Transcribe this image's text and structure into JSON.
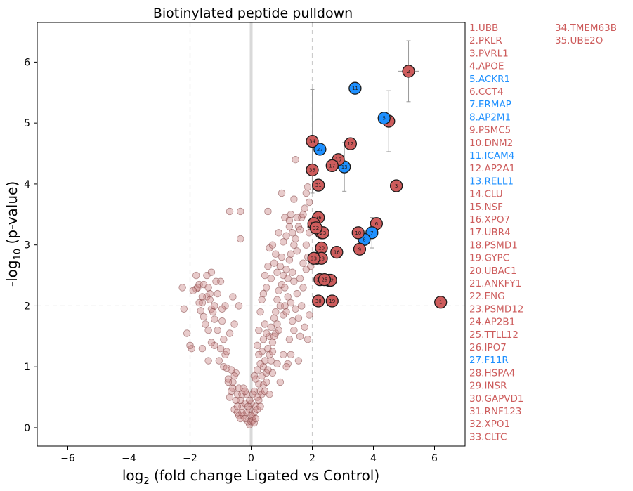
{
  "chart_data": {
    "type": "scatter",
    "title": "Biotinylated peptide pulldown",
    "xlabel_prefix": "log",
    "xlabel_sub": "2",
    "xlabel_rest": " (fold change Ligated vs Control)",
    "ylabel_prefix": "-log",
    "ylabel_sub": "10",
    "ylabel_rest": " (p-value)",
    "xlim": [
      -7,
      7
    ],
    "ylim": [
      -0.3,
      6.65
    ],
    "xticks": [
      -6,
      -4,
      -2,
      0,
      2,
      4,
      6
    ],
    "xtick_labels": [
      "−6",
      "−4",
      "−2",
      "0",
      "2",
      "4",
      "6"
    ],
    "yticks": [
      0,
      1,
      2,
      3,
      4,
      5,
      6
    ],
    "ytick_labels": [
      "0",
      "1",
      "2",
      "3",
      "4",
      "5",
      "6"
    ],
    "threshold_x": [
      -2,
      2
    ],
    "threshold_y": 2,
    "colors": {
      "red": "#cd5c5c",
      "blue": "#1e90ff",
      "bg_point": "#cd8c8c",
      "guide": "#cccccc",
      "zero": "#d9d9d9"
    },
    "labeled_points": [
      {
        "id": 1,
        "name": "UBB",
        "color": "red",
        "x": 6.2,
        "y": 2.06
      },
      {
        "id": 2,
        "name": "PKLR",
        "color": "red",
        "x": 5.15,
        "y": 5.85,
        "xerr": 0.35,
        "yerr": 0.5
      },
      {
        "id": 3,
        "name": "PVRL1",
        "color": "red",
        "x": 4.75,
        "y": 3.97
      },
      {
        "id": 4,
        "name": "APOE",
        "color": "red",
        "x": 4.5,
        "y": 5.03,
        "xerr": 0.2,
        "yerr": 0.5
      },
      {
        "id": 5,
        "name": "ACKR1",
        "color": "blue",
        "x": 4.35,
        "y": 5.08
      },
      {
        "id": 6,
        "name": "CCT4",
        "color": "red",
        "x": 4.1,
        "y": 3.35
      },
      {
        "id": 7,
        "name": "ERMAP",
        "color": "blue",
        "x": 3.95,
        "y": 3.2,
        "xerr": 0.2,
        "yerr": 0.25
      },
      {
        "id": 8,
        "name": "AP2M1",
        "color": "blue",
        "x": 3.7,
        "y": 3.09
      },
      {
        "id": 9,
        "name": "PSMC5",
        "color": "red",
        "x": 3.55,
        "y": 2.93
      },
      {
        "id": 10,
        "name": "DNM2",
        "color": "red",
        "x": 3.5,
        "y": 3.2
      },
      {
        "id": 11,
        "name": "ICAM4",
        "color": "blue",
        "x": 3.4,
        "y": 5.57
      },
      {
        "id": 12,
        "name": "AP2A1",
        "color": "red",
        "x": 3.25,
        "y": 4.66
      },
      {
        "id": 13,
        "name": "RELL1",
        "color": "blue",
        "x": 3.05,
        "y": 4.28,
        "yerr": 0.4
      },
      {
        "id": 14,
        "name": "CLU",
        "color": "red",
        "x": 2.3,
        "y": 3.2
      },
      {
        "id": 15,
        "name": "NSF",
        "color": "red",
        "x": 2.85,
        "y": 4.4
      },
      {
        "id": 16,
        "name": "XPO7",
        "color": "red",
        "x": 2.8,
        "y": 2.88
      },
      {
        "id": 17,
        "name": "UBR4",
        "color": "red",
        "x": 2.65,
        "y": 4.3
      },
      {
        "id": 18,
        "name": "PSMD1",
        "color": "red",
        "x": 2.15,
        "y": 2.78
      },
      {
        "id": 19,
        "name": "GYPC",
        "color": "red",
        "x": 2.65,
        "y": 2.08
      },
      {
        "id": 20,
        "name": "UBAC1",
        "color": "red",
        "x": 2.3,
        "y": 2.95
      },
      {
        "id": 21,
        "name": "ANKFY1",
        "color": "red",
        "x": 2.55,
        "y": 2.42
      },
      {
        "id": 22,
        "name": "ENG",
        "color": "red",
        "x": 2.6,
        "y": 2.42
      },
      {
        "id": 23,
        "name": "PSMD12",
        "color": "red",
        "x": 2.35,
        "y": 3.2
      },
      {
        "id": 24,
        "name": "AP2B1",
        "color": "red",
        "x": 2.25,
        "y": 2.43
      },
      {
        "id": 25,
        "name": "TTLL12",
        "color": "red",
        "x": 2.4,
        "y": 2.43
      },
      {
        "id": 26,
        "name": "IPO7",
        "color": "red",
        "x": 2.2,
        "y": 3.45
      },
      {
        "id": 27,
        "name": "F11R",
        "color": "blue",
        "x": 2.25,
        "y": 4.57
      },
      {
        "id": 28,
        "name": "HSPA4",
        "color": "red",
        "x": 2.3,
        "y": 2.78
      },
      {
        "id": 29,
        "name": "INSR",
        "color": "red",
        "x": 2.05,
        "y": 3.35
      },
      {
        "id": 30,
        "name": "GAPVD1",
        "color": "red",
        "x": 2.2,
        "y": 2.08
      },
      {
        "id": 31,
        "name": "RNF123",
        "color": "red",
        "x": 2.2,
        "y": 3.98
      },
      {
        "id": 32,
        "name": "XPO1",
        "color": "red",
        "x": 2.12,
        "y": 3.28
      },
      {
        "id": 33,
        "name": "CLTC",
        "color": "red",
        "x": 2.05,
        "y": 2.78
      },
      {
        "id": 34,
        "name": "TMEM63B",
        "color": "red",
        "x": 2.0,
        "y": 4.7,
        "yerr": 0.85
      },
      {
        "id": 35,
        "name": "UBE2O",
        "color": "red",
        "x": 2.0,
        "y": 4.23
      }
    ],
    "background_points": [
      [
        -1.95,
        1.3
      ],
      [
        -2.0,
        1.35
      ],
      [
        -2.25,
        2.3
      ],
      [
        -1.8,
        2.28
      ],
      [
        -1.6,
        2.05
      ],
      [
        -1.55,
        1.82
      ],
      [
        -1.45,
        2.15
      ],
      [
        -1.35,
        2.2
      ],
      [
        -1.3,
        1.95
      ],
      [
        -1.2,
        1.78
      ],
      [
        -1.0,
        1.3
      ],
      [
        -1.05,
        1.1
      ],
      [
        -1.2,
        1.35
      ],
      [
        -1.3,
        1.4
      ],
      [
        -1.4,
        1.6
      ],
      [
        -1.5,
        1.7
      ],
      [
        -1.65,
        1.92
      ],
      [
        -1.7,
        2.35
      ],
      [
        -1.8,
        2.5
      ],
      [
        -1.75,
        2.3
      ],
      [
        -0.9,
        1.0
      ],
      [
        -0.85,
        1.2
      ],
      [
        -0.8,
        0.98
      ],
      [
        -0.75,
        0.8
      ],
      [
        -0.7,
        0.5
      ],
      [
        -0.65,
        0.6
      ],
      [
        -0.6,
        0.75
      ],
      [
        -0.55,
        0.3
      ],
      [
        -0.5,
        0.45
      ],
      [
        -0.45,
        0.25
      ],
      [
        -0.4,
        0.2
      ],
      [
        -0.35,
        0.15
      ],
      [
        -0.3,
        0.35
      ],
      [
        -0.25,
        0.65
      ],
      [
        -0.2,
        0.4
      ],
      [
        -0.15,
        0.55
      ],
      [
        -0.1,
        0.1
      ],
      [
        -0.05,
        0.05
      ],
      [
        0.0,
        0.1
      ],
      [
        0.05,
        0.18
      ],
      [
        0.1,
        0.25
      ],
      [
        0.15,
        0.35
      ],
      [
        0.2,
        0.5
      ],
      [
        0.25,
        0.72
      ],
      [
        0.3,
        0.6
      ],
      [
        0.35,
        0.85
      ],
      [
        0.4,
        1.0
      ],
      [
        0.45,
        1.1
      ],
      [
        0.5,
        0.9
      ],
      [
        0.55,
        1.3
      ],
      [
        0.6,
        1.5
      ],
      [
        0.65,
        1.65
      ],
      [
        0.7,
        1.4
      ],
      [
        0.75,
        1.8
      ],
      [
        0.8,
        1.9
      ],
      [
        0.85,
        2.1
      ],
      [
        0.9,
        2.25
      ],
      [
        0.95,
        2.0
      ],
      [
        1.0,
        2.35
      ],
      [
        1.05,
        2.5
      ],
      [
        1.1,
        2.3
      ],
      [
        1.15,
        2.6
      ],
      [
        1.2,
        2.45
      ],
      [
        1.25,
        2.75
      ],
      [
        1.3,
        2.85
      ],
      [
        1.35,
        2.55
      ],
      [
        1.4,
        3.0
      ],
      [
        1.45,
        3.1
      ],
      [
        1.5,
        2.9
      ],
      [
        1.55,
        3.3
      ],
      [
        1.6,
        3.25
      ],
      [
        1.65,
        3.45
      ],
      [
        1.7,
        3.5
      ],
      [
        1.75,
        3.6
      ],
      [
        1.8,
        3.85
      ],
      [
        1.85,
        3.95
      ],
      [
        1.9,
        3.7
      ],
      [
        1.95,
        3.3
      ],
      [
        1.3,
        3.5
      ],
      [
        1.1,
        3.45
      ],
      [
        0.55,
        3.55
      ],
      [
        1.0,
        3.85
      ],
      [
        1.25,
        3.4
      ],
      [
        0.9,
        3.2
      ],
      [
        1.45,
        4.4
      ],
      [
        1.4,
        3.75
      ],
      [
        1.5,
        3.45
      ],
      [
        1.7,
        2.3
      ],
      [
        1.8,
        2.6
      ],
      [
        1.6,
        1.5
      ],
      [
        1.3,
        1.2
      ],
      [
        1.55,
        1.1
      ],
      [
        1.2,
        1.05
      ],
      [
        0.95,
        0.75
      ],
      [
        0.85,
        1.05
      ],
      [
        0.7,
        0.9
      ],
      [
        0.6,
        1.2
      ],
      [
        0.5,
        1.55
      ],
      [
        0.45,
        1.7
      ],
      [
        0.4,
        1.45
      ],
      [
        0.35,
        1.25
      ],
      [
        0.3,
        1.05
      ],
      [
        0.25,
        1.2
      ],
      [
        0.2,
        0.95
      ],
      [
        0.15,
        0.8
      ],
      [
        0.1,
        0.6
      ],
      [
        0.0,
        0.4
      ],
      [
        -0.05,
        0.3
      ],
      [
        0.05,
        0.55
      ],
      [
        0.1,
        0.85
      ],
      [
        -0.7,
        3.55
      ],
      [
        -0.35,
        3.55
      ],
      [
        -0.35,
        3.1
      ],
      [
        -0.6,
        2.15
      ],
      [
        -0.4,
        2.0
      ],
      [
        -0.55,
        1.7
      ],
      [
        -0.7,
        1.55
      ],
      [
        -0.9,
        1.45
      ],
      [
        -1.1,
        1.6
      ],
      [
        -1.25,
        1.9
      ],
      [
        -0.95,
        1.75
      ],
      [
        -0.85,
        2.0
      ],
      [
        -1.45,
        2.5
      ],
      [
        -1.55,
        2.35
      ],
      [
        -1.4,
        2.3
      ],
      [
        -1.2,
        2.0
      ],
      [
        -1.1,
        2.2
      ],
      [
        -1.0,
        2.4
      ],
      [
        -0.95,
        1.95
      ],
      [
        -0.5,
        0.9
      ],
      [
        -0.45,
        0.55
      ],
      [
        -0.35,
        0.45
      ],
      [
        -0.25,
        0.2
      ],
      [
        -0.2,
        0.15
      ],
      [
        -0.15,
        0.25
      ],
      [
        -0.1,
        0.35
      ],
      [
        -0.05,
        0.45
      ],
      [
        0.0,
        0.2
      ],
      [
        0.05,
        0.12
      ],
      [
        0.1,
        0.08
      ],
      [
        0.15,
        0.15
      ],
      [
        0.2,
        0.3
      ],
      [
        0.25,
        0.45
      ],
      [
        0.3,
        0.35
      ],
      [
        0.35,
        0.55
      ],
      [
        0.4,
        0.7
      ],
      [
        0.45,
        0.6
      ],
      [
        0.5,
        0.75
      ],
      [
        0.55,
        0.95
      ],
      [
        0.6,
        0.55
      ],
      [
        0.65,
        1.1
      ],
      [
        0.7,
        1.25
      ],
      [
        0.75,
        1.5
      ],
      [
        0.8,
        1.55
      ],
      [
        0.85,
        1.7
      ],
      [
        0.9,
        1.6
      ],
      [
        1.05,
        1.85
      ],
      [
        1.1,
        2.0
      ],
      [
        1.15,
        1.9
      ],
      [
        1.2,
        2.15
      ],
      [
        1.3,
        2.05
      ],
      [
        1.35,
        1.75
      ],
      [
        1.4,
        2.4
      ],
      [
        1.5,
        2.2
      ],
      [
        1.6,
        2.45
      ],
      [
        1.7,
        2.7
      ],
      [
        1.8,
        3.0
      ],
      [
        1.9,
        3.2
      ],
      [
        1.85,
        2.8
      ],
      [
        1.95,
        2.65
      ],
      [
        0.5,
        2.3
      ],
      [
        0.45,
        2.5
      ],
      [
        0.55,
        2.65
      ],
      [
        0.65,
        2.45
      ],
      [
        0.75,
        2.7
      ],
      [
        0.85,
        2.55
      ],
      [
        0.6,
        2.95
      ],
      [
        0.7,
        3.0
      ],
      [
        0.8,
        2.85
      ],
      [
        0.95,
        2.65
      ],
      [
        1.0,
        2.8
      ],
      [
        1.05,
        3.05
      ],
      [
        1.15,
        3.15
      ],
      [
        1.25,
        3.3
      ],
      [
        1.35,
        3.2
      ],
      [
        0.4,
        2.2
      ],
      [
        0.3,
        1.9
      ],
      [
        0.35,
        2.1
      ],
      [
        0.25,
        1.6
      ],
      [
        0.2,
        1.35
      ],
      [
        -0.8,
        1.25
      ],
      [
        -0.75,
        0.75
      ],
      [
        -0.65,
        0.95
      ],
      [
        -0.6,
        0.65
      ],
      [
        -0.55,
        0.85
      ],
      [
        -0.45,
        0.35
      ],
      [
        -0.4,
        0.65
      ],
      [
        -0.3,
        0.55
      ],
      [
        -0.3,
        0.25
      ],
      [
        -0.2,
        0.6
      ],
      [
        -1.15,
        2.4
      ],
      [
        -1.3,
        2.55
      ],
      [
        -1.35,
        2.1
      ],
      [
        -1.6,
        2.15
      ],
      [
        -1.7,
        2.05
      ],
      [
        -1.9,
        2.25
      ],
      [
        -2.2,
        1.95
      ],
      [
        -2.1,
        1.55
      ],
      [
        -1.6,
        1.3
      ],
      [
        -1.4,
        1.1
      ],
      [
        1.05,
        1.2
      ],
      [
        1.15,
        1.0
      ],
      [
        1.25,
        1.45
      ],
      [
        1.4,
        1.6
      ],
      [
        1.45,
        1.95
      ],
      [
        1.55,
        1.8
      ],
      [
        1.65,
        2.0
      ],
      [
        1.75,
        1.65
      ],
      [
        1.9,
        1.85
      ],
      [
        1.85,
        1.45
      ]
    ]
  },
  "legend": {
    "col1": [
      {
        "text": "1.UBB",
        "color": "red"
      },
      {
        "text": "2.PKLR",
        "color": "red"
      },
      {
        "text": "3.PVRL1",
        "color": "red"
      },
      {
        "text": "4.APOE",
        "color": "red"
      },
      {
        "text": "5.ACKR1",
        "color": "blue"
      },
      {
        "text": "6.CCT4",
        "color": "red"
      },
      {
        "text": "7.ERMAP",
        "color": "blue"
      },
      {
        "text": "8.AP2M1",
        "color": "blue"
      },
      {
        "text": "9.PSMC5",
        "color": "red"
      },
      {
        "text": "10.DNM2",
        "color": "red"
      },
      {
        "text": "11.ICAM4",
        "color": "blue"
      },
      {
        "text": "12.AP2A1",
        "color": "red"
      },
      {
        "text": "13.RELL1",
        "color": "blue"
      },
      {
        "text": "14.CLU",
        "color": "red"
      },
      {
        "text": "15.NSF",
        "color": "red"
      },
      {
        "text": "16.XPO7",
        "color": "red"
      },
      {
        "text": "17.UBR4",
        "color": "red"
      },
      {
        "text": "18.PSMD1",
        "color": "red"
      },
      {
        "text": "19.GYPC",
        "color": "red"
      },
      {
        "text": "20.UBAC1",
        "color": "red"
      },
      {
        "text": "21.ANKFY1",
        "color": "red"
      },
      {
        "text": "22.ENG",
        "color": "red"
      },
      {
        "text": "23.PSMD12",
        "color": "red"
      },
      {
        "text": "24.AP2B1",
        "color": "red"
      },
      {
        "text": "25.TTLL12",
        "color": "red"
      },
      {
        "text": "26.IPO7",
        "color": "red"
      },
      {
        "text": "27.F11R",
        "color": "blue"
      },
      {
        "text": "28.HSPA4",
        "color": "red"
      },
      {
        "text": "29.INSR",
        "color": "red"
      },
      {
        "text": "30.GAPVD1",
        "color": "red"
      },
      {
        "text": "31.RNF123",
        "color": "red"
      },
      {
        "text": "32.XPO1",
        "color": "red"
      },
      {
        "text": "33.CLTC",
        "color": "red"
      }
    ],
    "col2": [
      {
        "text": "34.TMEM63B",
        "color": "red"
      },
      {
        "text": "35.UBE2O",
        "color": "red"
      }
    ]
  }
}
